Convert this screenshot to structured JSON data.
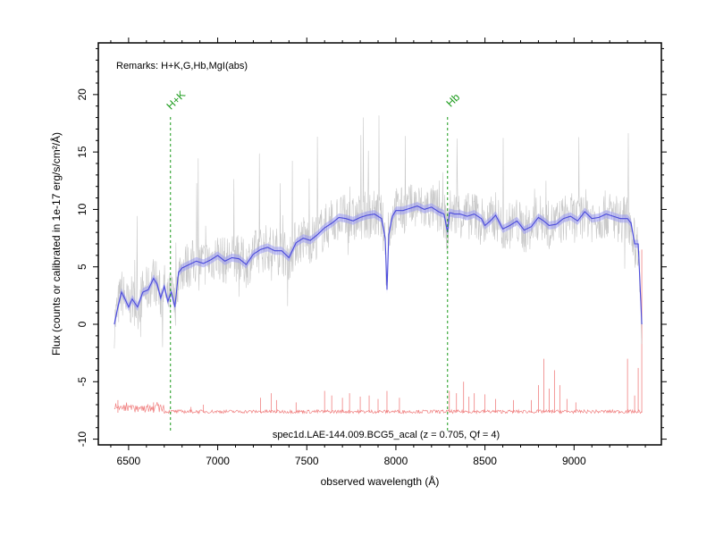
{
  "chart_data": {
    "type": "line",
    "xlabel": "observed wavelength (Å)",
    "ylabel": "Flux (counts or calibrated in 1e-17 erg/s/cm²/Å)",
    "remarks": "Remarks: H+K,G,Hb,MgI(abs)",
    "caption": "spec1d.LAE-144.009.BCG5_acal (z = 0.705, Qf = 4)",
    "xlim": [
      6330,
      9490
    ],
    "ylim": [
      -10.5,
      24.5
    ],
    "xticks": [
      6500,
      7000,
      7500,
      8000,
      8500,
      9000
    ],
    "yticks": [
      -10,
      -5,
      0,
      5,
      10,
      15,
      20
    ],
    "grid": false,
    "colors": {
      "raw": "#c8c8c8",
      "smoothed": "#4b4bdc",
      "smoothed_band": "#9a9af0",
      "noise": "#f08080",
      "lines": "#1a9a1a"
    },
    "series": [
      {
        "role": "smoothed",
        "x": [
          6420,
          6440,
          6460,
          6480,
          6500,
          6520,
          6550,
          6580,
          6610,
          6640,
          6660,
          6680,
          6700,
          6720,
          6740,
          6760,
          6780,
          6800,
          6840,
          6880,
          6920,
          6960,
          7000,
          7040,
          7080,
          7120,
          7160,
          7200,
          7240,
          7280,
          7320,
          7360,
          7400,
          7440,
          7480,
          7520,
          7560,
          7600,
          7640,
          7680,
          7720,
          7760,
          7800,
          7840,
          7880,
          7920,
          7940,
          7950,
          7960,
          7980,
          8000,
          8040,
          8080,
          8120,
          8160,
          8200,
          8240,
          8270,
          8290,
          8300,
          8310,
          8330,
          8360,
          8400,
          8440,
          8480,
          8500,
          8530,
          8560,
          8600,
          8640,
          8680,
          8700,
          8720,
          8760,
          8800,
          8830,
          8860,
          8900,
          8940,
          8980,
          9020,
          9060,
          9100,
          9140,
          9180,
          9220,
          9260,
          9300,
          9320,
          9340,
          9360,
          9380
        ],
        "y": [
          0,
          1.5,
          2.8,
          2.2,
          1.5,
          2.2,
          1.5,
          2.8,
          3.0,
          4.0,
          3.5,
          2.3,
          3.3,
          2.0,
          2.8,
          1.5,
          4.5,
          4.9,
          5.2,
          5.5,
          5.3,
          5.6,
          6.0,
          5.5,
          5.8,
          5.7,
          5.2,
          6.1,
          6.5,
          6.7,
          6.4,
          6.4,
          5.8,
          7.1,
          7.5,
          7.3,
          7.8,
          8.4,
          8.8,
          9.3,
          9.2,
          9.0,
          9.3,
          9.5,
          9.6,
          9.2,
          7.5,
          3.0,
          7.8,
          9.4,
          9.9,
          9.9,
          10.1,
          10.3,
          10.0,
          10.2,
          9.8,
          9.6,
          8.0,
          9.7,
          9.7,
          9.6,
          9.6,
          9.4,
          9.6,
          9.2,
          8.6,
          9.0,
          9.5,
          8.3,
          8.6,
          9.0,
          8.6,
          8.2,
          8.5,
          9.3,
          9.0,
          8.6,
          8.7,
          9.2,
          9.4,
          9.0,
          9.8,
          9.2,
          9.3,
          9.6,
          9.4,
          9.2,
          9.2,
          8.8,
          7.0,
          7.0,
          0
        ]
      }
    ],
    "noise_spikes": [
      [
        6440,
        -6.6
      ],
      [
        6640,
        -6.8
      ],
      [
        6850,
        -7.2
      ],
      [
        6920,
        -7.0
      ],
      [
        7240,
        -6.4
      ],
      [
        7300,
        -6.0
      ],
      [
        7330,
        -6.6
      ],
      [
        7440,
        -6.8
      ],
      [
        7600,
        -5.8
      ],
      [
        7640,
        -6.2
      ],
      [
        7700,
        -6.4
      ],
      [
        7740,
        -6.0
      ],
      [
        7800,
        -6.3
      ],
      [
        7850,
        -6.2
      ],
      [
        7900,
        -6.5
      ],
      [
        7950,
        -5.8
      ],
      [
        8020,
        -6.4
      ],
      [
        8300,
        -5.8
      ],
      [
        8340,
        -6.0
      ],
      [
        8380,
        -5.0
      ],
      [
        8410,
        -6.3
      ],
      [
        8440,
        -6.0
      ],
      [
        8500,
        -6.1
      ],
      [
        8560,
        -6.5
      ],
      [
        8660,
        -6.6
      ],
      [
        8760,
        -6.6
      ],
      [
        8800,
        -5.3
      ],
      [
        8830,
        -3.0
      ],
      [
        8860,
        -5.6
      ],
      [
        8890,
        -4.0
      ],
      [
        8920,
        -5.3
      ],
      [
        8960,
        -6.5
      ],
      [
        9010,
        -6.8
      ],
      [
        9300,
        -3.0
      ],
      [
        9340,
        -6.2
      ],
      [
        9360,
        -3.8
      ],
      [
        9380,
        6.5
      ]
    ],
    "lines": [
      {
        "label": "H+K",
        "x": 6735
      },
      {
        "label": "Hb",
        "x": 8290
      }
    ]
  }
}
